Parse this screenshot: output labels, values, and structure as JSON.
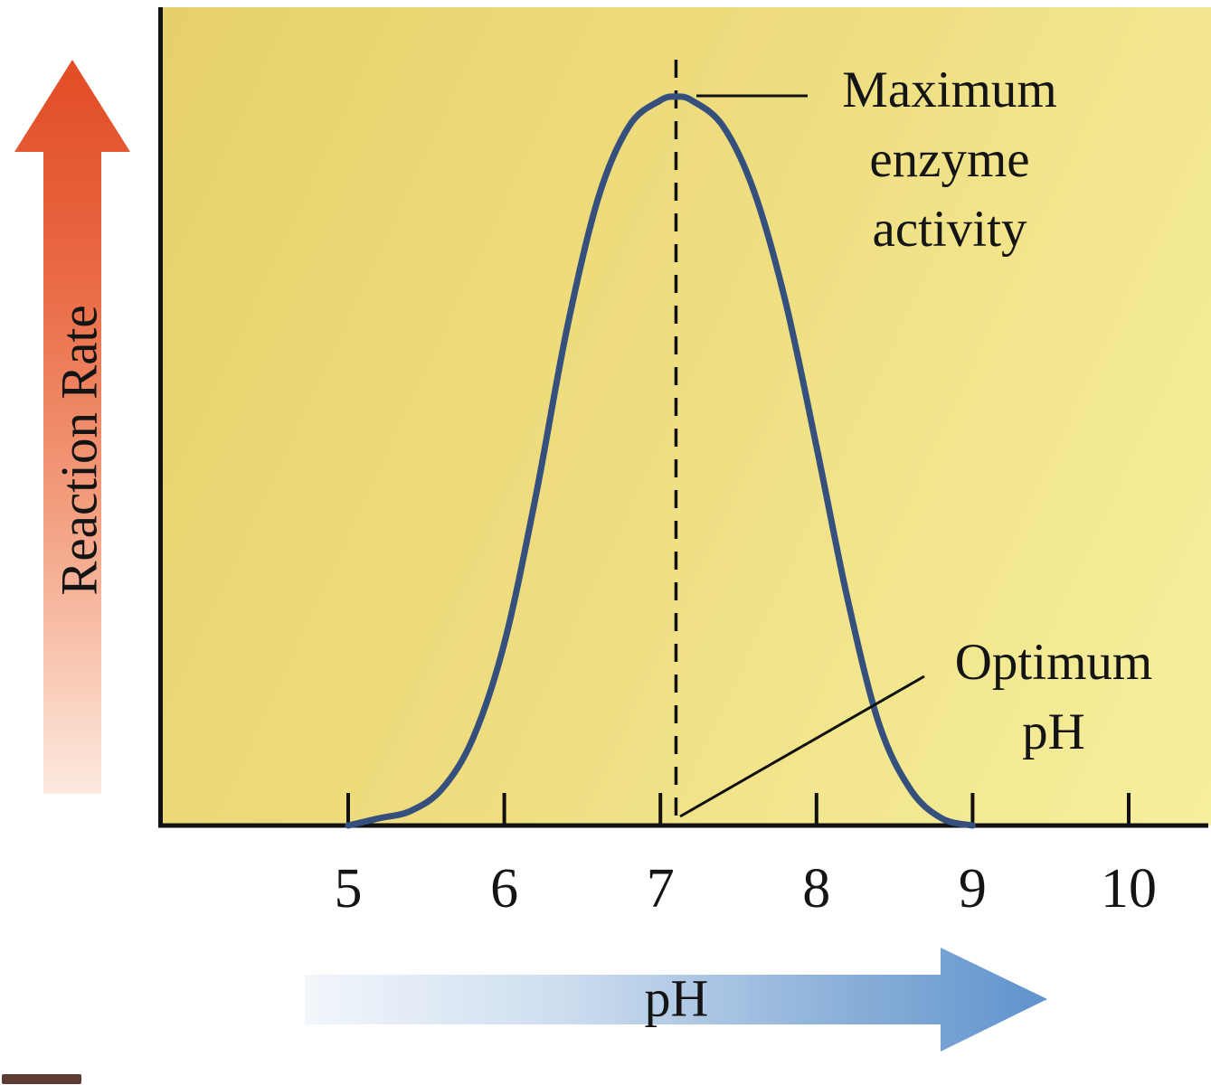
{
  "figure": {
    "y_axis_label": "Reaction Rate",
    "x_arrow_label": "pH",
    "annotation_max": {
      "line1": "Maximum",
      "line2": "enzyme",
      "line3": "activity"
    },
    "annotation_opt": {
      "line1": "Optimum",
      "line2": "pH"
    }
  },
  "chart_data": {
    "type": "line",
    "xlabel": "pH",
    "ylabel": "Reaction Rate",
    "x_ticks": [
      5,
      6,
      7,
      8,
      9,
      10
    ],
    "ylim": [
      0,
      100
    ],
    "y_units": "relative enzyme activity (unlabeled qualitative axis)",
    "x": [
      5.0,
      5.2,
      5.4,
      5.6,
      5.8,
      6.0,
      6.2,
      6.4,
      6.6,
      6.8,
      7.0,
      7.1,
      7.2,
      7.4,
      7.6,
      7.8,
      8.0,
      8.2,
      8.4,
      8.6,
      8.8,
      9.0
    ],
    "y_relative_activity": [
      0,
      1,
      2,
      5,
      12,
      25,
      45,
      68,
      86,
      96,
      99.5,
      100,
      99.5,
      96,
      87,
      72,
      52,
      31,
      14,
      5,
      1,
      0
    ],
    "optimum_ph": 7.1,
    "annotations": [
      {
        "text": "Maximum enzyme activity",
        "points_to": "peak of curve at optimum pH"
      },
      {
        "text": "Optimum pH",
        "points_to": "pH 7.1 on x-axis"
      }
    ],
    "grid": false,
    "legend": false
  },
  "colors": {
    "plot_background_start": "#e7d06b",
    "plot_background_end": "#f6ef9e",
    "curve": "#36507e",
    "axis": "#111111",
    "dashed_line": "#111111",
    "reaction_rate_arrow": "#e14c26",
    "ph_arrow": "#5f93cc"
  }
}
